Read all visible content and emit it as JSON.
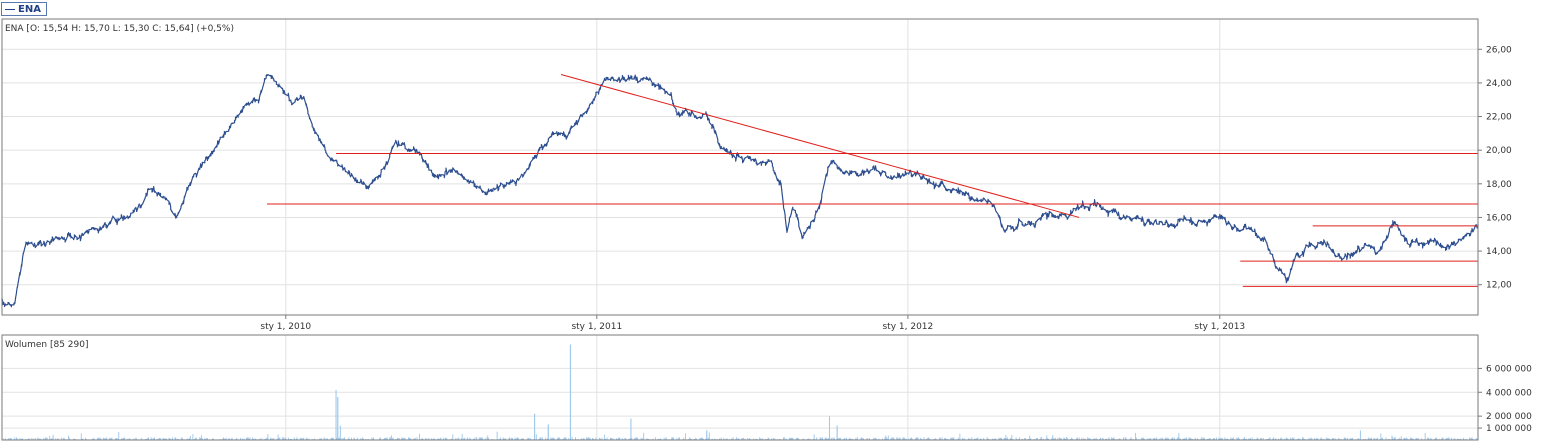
{
  "ticker_tab": {
    "label": "ENA"
  },
  "price_panel": {
    "legend": "ENA [O: 15,54  H: 15,70  L: 15,30  C: 15,64] (+0,5%)"
  },
  "volume_panel": {
    "legend": "Wolumen [85 290]"
  },
  "colors": {
    "price_line": "#2e4f8f",
    "trend_line": "#e0201c",
    "volume_bar": "#9cc7ec",
    "grid": "#e2e2e2",
    "frame": "#7a7a7a"
  },
  "chart_data": [
    {
      "type": "line",
      "title": "ENA",
      "legend_text": "ENA [O: 15,54  H: 15,70  L: 15,30  C: 15,64] (+0,5%)",
      "x_ticks": [
        "sty 1, 2010",
        "sty 1, 2011",
        "sty 1, 2012",
        "sty 1, 2013"
      ],
      "x_range": [
        "2009-02-02",
        "2013-10-31"
      ],
      "y_ticks": [
        "12,00",
        "14,00",
        "16,00",
        "18,00",
        "20,00",
        "22,00",
        "24,00",
        "26,00"
      ],
      "ylim": [
        10.2,
        27.8
      ],
      "grid": true,
      "series": [
        {
          "name": "ENA",
          "x": [
            "2009-02-02",
            "2009-02-15",
            "2009-03-01",
            "2009-03-20",
            "2009-04-10",
            "2009-05-01",
            "2009-05-20",
            "2009-06-10",
            "2009-06-25",
            "2009-07-10",
            "2009-07-25",
            "2009-08-05",
            "2009-08-15",
            "2009-08-25",
            "2009-09-10",
            "2009-09-25",
            "2009-10-10",
            "2009-10-20",
            "2009-11-01",
            "2009-11-15",
            "2009-11-30",
            "2009-12-10",
            "2009-12-25",
            "2010-01-10",
            "2010-01-22",
            "2010-02-05",
            "2010-02-15",
            "2010-02-25",
            "2010-03-10",
            "2010-03-25",
            "2010-04-10",
            "2010-04-25",
            "2010-05-10",
            "2010-06-01",
            "2010-06-25",
            "2010-07-15",
            "2010-08-05",
            "2010-08-25",
            "2010-09-10",
            "2010-09-25",
            "2010-10-10",
            "2010-10-25",
            "2010-11-10",
            "2010-11-25",
            "2010-12-10",
            "2010-12-25",
            "2011-01-10",
            "2011-01-25",
            "2011-02-10",
            "2011-03-01",
            "2011-03-20",
            "2011-04-05",
            "2011-04-25",
            "2011-05-10",
            "2011-05-25",
            "2011-06-10",
            "2011-06-25",
            "2011-07-10",
            "2011-07-25",
            "2011-08-05",
            "2011-08-12",
            "2011-08-20",
            "2011-08-30",
            "2011-09-10",
            "2011-09-20",
            "2011-10-01",
            "2011-10-12",
            "2011-10-25",
            "2011-11-10",
            "2011-11-25",
            "2011-12-10",
            "2011-12-25",
            "2012-01-10",
            "2012-01-25",
            "2012-02-10",
            "2012-02-25",
            "2012-03-15",
            "2012-04-05",
            "2012-04-25",
            "2012-05-10",
            "2012-05-25",
            "2012-06-10",
            "2012-06-25",
            "2012-07-15",
            "2012-08-05",
            "2012-08-25",
            "2012-09-15",
            "2012-10-05",
            "2012-10-25",
            "2012-11-15",
            "2012-12-05",
            "2012-12-25",
            "2013-01-15",
            "2013-02-05",
            "2013-02-25",
            "2013-03-10",
            "2013-03-20",
            "2013-04-01",
            "2013-04-15",
            "2013-05-01",
            "2013-05-15",
            "2013-06-01",
            "2013-06-20",
            "2013-07-05",
            "2013-07-25",
            "2013-08-10",
            "2013-08-25",
            "2013-09-10",
            "2013-09-25",
            "2013-10-10",
            "2013-10-25",
            "2013-10-31"
          ],
          "values": [
            11.0,
            10.7,
            14.2,
            14.4,
            14.5,
            15.0,
            15.3,
            15.6,
            15.9,
            16.5,
            17.6,
            17.4,
            17.0,
            16.2,
            18.0,
            19.2,
            20.0,
            20.8,
            21.5,
            22.5,
            23.0,
            24.5,
            23.8,
            22.8,
            23.0,
            21.0,
            20.0,
            19.2,
            18.8,
            18.0,
            17.8,
            19.0,
            20.6,
            20.0,
            18.5,
            18.8,
            18.0,
            17.6,
            17.8,
            18.2,
            18.6,
            20.0,
            21.0,
            20.8,
            21.5,
            22.7,
            24.0,
            24.2,
            24.4,
            24.0,
            23.7,
            22.5,
            22.0,
            21.9,
            20.2,
            19.8,
            19.6,
            19.4,
            19.1,
            17.6,
            15.0,
            17.0,
            15.0,
            15.5,
            17.0,
            19.2,
            19.0,
            18.7,
            18.6,
            18.7,
            18.3,
            18.4,
            18.5,
            18.2,
            17.9,
            17.5,
            17.0,
            16.8,
            15.0,
            15.8,
            15.5,
            15.8,
            16.1,
            16.2,
            16.9,
            16.5,
            16.0,
            15.8,
            15.6,
            15.8,
            15.4,
            16.0,
            15.5,
            15.3,
            14.3,
            13.0,
            12.2,
            13.7,
            14.4,
            14.5,
            14.0,
            13.6,
            14.5,
            13.8,
            15.5,
            14.3,
            14.5,
            14.5,
            14.3,
            14.6,
            15.2,
            15.6
          ]
        }
      ],
      "annotations": {
        "horizontal_lines": [
          {
            "y": 19.8,
            "x_start": "2010-03-01",
            "x_end": "2013-10-31"
          },
          {
            "y": 16.8,
            "x_start": "2009-12-10",
            "x_end": "2013-10-31"
          },
          {
            "y": 15.5,
            "x_start": "2013-04-20",
            "x_end": "2013-10-31"
          },
          {
            "y": 13.4,
            "x_start": "2013-01-25",
            "x_end": "2013-10-31"
          },
          {
            "y": 11.9,
            "x_start": "2013-01-28",
            "x_end": "2013-10-31"
          }
        ],
        "trend_lines": [
          {
            "from": {
              "x": "2010-11-20",
              "y": 24.5
            },
            "to": {
              "x": "2012-07-20",
              "y": 16.0
            }
          }
        ]
      }
    },
    {
      "type": "bar",
      "title": "Wolumen",
      "legend_text": "Wolumen [85 290]",
      "y_ticks": [
        "1 000 000",
        "2 000 000",
        "4 000 000",
        "6 000 000"
      ],
      "ylim": [
        0,
        8800000
      ],
      "grid": true,
      "typical_volume": 150000,
      "volume_spikes": [
        {
          "date": "2010-03-01",
          "volume": 4200000
        },
        {
          "date": "2010-03-03",
          "volume": 3600000
        },
        {
          "date": "2010-03-06",
          "volume": 1200000
        },
        {
          "date": "2010-10-20",
          "volume": 2200000
        },
        {
          "date": "2010-11-05",
          "volume": 1300000
        },
        {
          "date": "2010-12-01",
          "volume": 8000000
        },
        {
          "date": "2011-02-10",
          "volume": 1800000
        },
        {
          "date": "2011-05-10",
          "volume": 800000
        },
        {
          "date": "2011-10-01",
          "volume": 2000000
        },
        {
          "date": "2011-10-10",
          "volume": 1200000
        },
        {
          "date": "2013-06-15",
          "volume": 800000
        }
      ]
    }
  ]
}
